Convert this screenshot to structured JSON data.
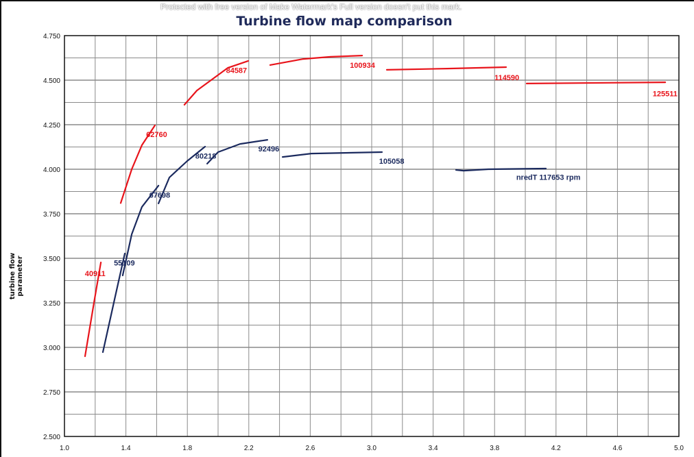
{
  "chart_data": {
    "type": "line",
    "title": "Turbine flow map comparison",
    "xlabel": "",
    "ylabel": "turbine flow parameter",
    "xlim": [
      1.0,
      5.0
    ],
    "ylim": [
      2.5,
      4.75
    ],
    "x_ticks": [
      "1.0",
      "1.4",
      "1.8",
      "2.2",
      "2.6",
      "3.0",
      "3.4",
      "3.8",
      "4.2",
      "4.6",
      "5.0"
    ],
    "y_ticks": [
      "2.500",
      "2.750",
      "3.000",
      "3.250",
      "3.500",
      "3.750",
      "4.000",
      "4.250",
      "4.500",
      "4.750"
    ],
    "grid": true,
    "colors": {
      "red": "#e8141b",
      "blue": "#1b2a5e"
    },
    "series": [
      {
        "name": "40911",
        "color": "red",
        "label_at": [
          1.2,
          3.4
        ],
        "points": [
          [
            1.134,
            2.95
          ],
          [
            1.192,
            3.25
          ],
          [
            1.237,
            3.477
          ]
        ]
      },
      {
        "name": "62760",
        "color": "red",
        "label_at": [
          1.6,
          4.18
        ],
        "points": [
          [
            1.366,
            3.81
          ],
          [
            1.438,
            4.0
          ],
          [
            1.504,
            4.135
          ],
          [
            1.589,
            4.246
          ]
        ]
      },
      {
        "name": "84587",
        "color": "red",
        "label_at": [
          2.12,
          4.54
        ],
        "points": [
          [
            1.781,
            4.362
          ],
          [
            1.862,
            4.442
          ],
          [
            1.973,
            4.512
          ],
          [
            2.063,
            4.569
          ],
          [
            2.196,
            4.608
          ]
        ]
      },
      {
        "name": "100934",
        "color": "red",
        "label_at": [
          2.94,
          4.57
        ],
        "points": [
          [
            2.339,
            4.585
          ],
          [
            2.554,
            4.619
          ],
          [
            2.732,
            4.631
          ],
          [
            2.938,
            4.638
          ]
        ]
      },
      {
        "name": "114590",
        "color": "red",
        "label_at": [
          3.88,
          4.5
        ],
        "points": [
          [
            3.098,
            4.558
          ],
          [
            3.491,
            4.565
          ],
          [
            3.875,
            4.573
          ]
        ]
      },
      {
        "name": "125511",
        "color": "red",
        "label_at": [
          4.91,
          4.41
        ],
        "points": [
          [
            4.009,
            4.481
          ],
          [
            4.911,
            4.488
          ]
        ]
      },
      {
        "name": "55109",
        "color": "blue",
        "label_at": [
          1.39,
          3.46
        ],
        "points": [
          [
            1.25,
            2.973
          ],
          [
            1.326,
            3.269
          ],
          [
            1.393,
            3.527
          ]
        ]
      },
      {
        "name": "67698",
        "color": "blue",
        "label_at": [
          1.62,
          3.84
        ],
        "points": [
          [
            1.379,
            3.404
          ],
          [
            1.438,
            3.635
          ],
          [
            1.504,
            3.788
          ],
          [
            1.612,
            3.908
          ]
        ]
      },
      {
        "name": "80218",
        "color": "blue",
        "label_at": [
          1.92,
          4.06
        ],
        "points": [
          [
            1.612,
            3.808
          ],
          [
            1.683,
            3.954
          ],
          [
            1.799,
            4.046
          ],
          [
            1.915,
            4.127
          ]
        ]
      },
      {
        "name": "92496",
        "color": "blue",
        "label_at": [
          2.33,
          4.1
        ],
        "points": [
          [
            1.929,
            4.031
          ],
          [
            2.0,
            4.096
          ],
          [
            2.143,
            4.142
          ],
          [
            2.321,
            4.165
          ]
        ]
      },
      {
        "name": "105058",
        "color": "blue",
        "label_at": [
          3.13,
          4.03
        ],
        "points": [
          [
            2.42,
            4.069
          ],
          [
            2.607,
            4.088
          ],
          [
            3.067,
            4.096
          ]
        ]
      },
      {
        "name": "nredT 117653 rpm",
        "color": "blue",
        "label_at": [
          4.15,
          3.94
        ],
        "points": [
          [
            3.549,
            3.996
          ],
          [
            3.598,
            3.992
          ],
          [
            3.759,
            4.0
          ],
          [
            4.134,
            4.004
          ]
        ]
      }
    ]
  },
  "watermark": "Protected with free version of Make Watermark's Full version doesn't put this mark."
}
